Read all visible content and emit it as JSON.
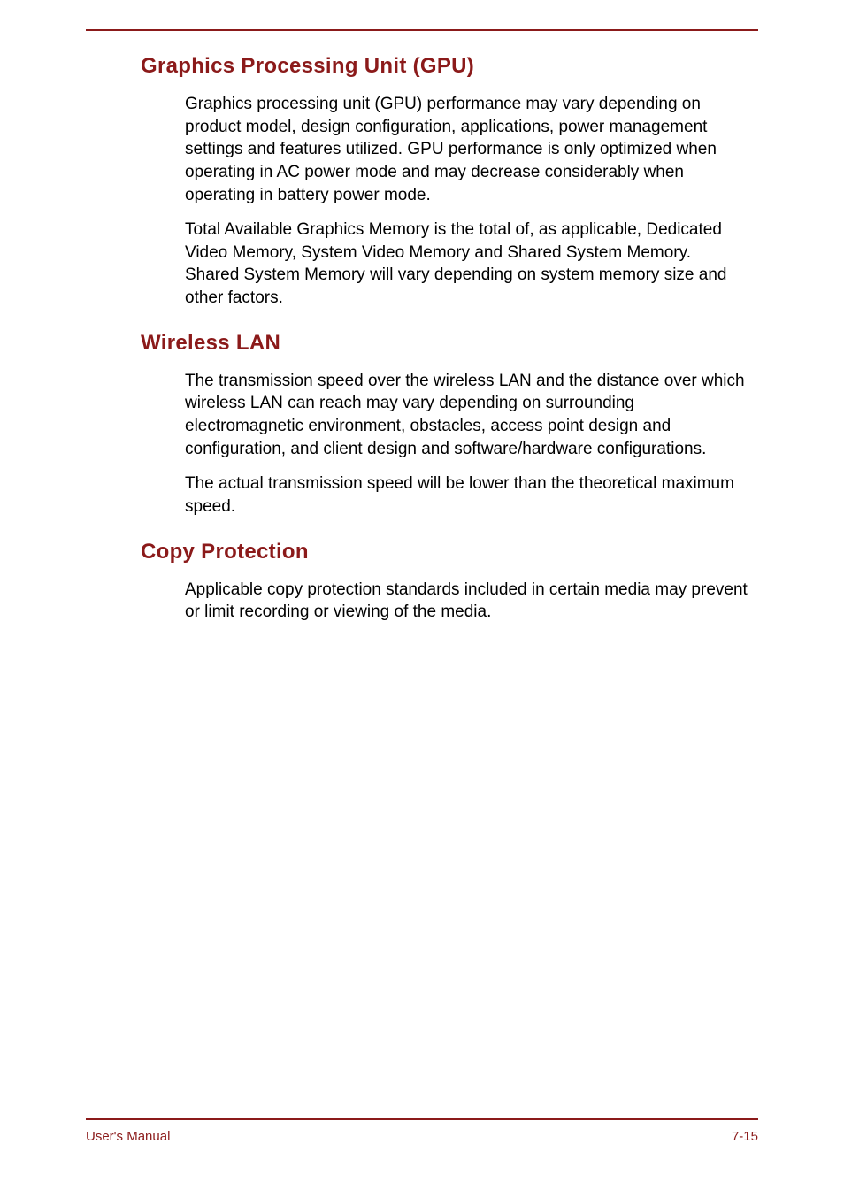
{
  "sections": [
    {
      "heading": "Graphics Processing Unit (GPU)",
      "paragraphs": [
        "Graphics processing unit (GPU) performance may vary depending on product model, design configuration, applications, power management settings and features utilized. GPU performance is only optimized when operating in AC power mode and may decrease considerably when operating in battery power mode.",
        "Total Available Graphics Memory is the total of, as applicable, Dedicated Video Memory, System Video Memory and Shared System Memory. Shared System Memory will vary depending on system memory size and other factors."
      ]
    },
    {
      "heading": "Wireless LAN",
      "paragraphs": [
        "The transmission speed over the wireless LAN and the distance over which wireless LAN can reach may vary depending on surrounding electromagnetic environment, obstacles, access point design and configuration, and client design and software/hardware configurations.",
        "The actual transmission speed will be lower than the theoretical maximum speed."
      ]
    },
    {
      "heading": "Copy Protection",
      "paragraphs": [
        "Applicable copy protection standards included in certain media may prevent or limit recording or viewing of the media."
      ]
    }
  ],
  "footer": {
    "left": "User's Manual",
    "right": "7-15"
  },
  "colors": {
    "accent": "#8b1a1a",
    "text": "#000000",
    "background": "#ffffff"
  }
}
